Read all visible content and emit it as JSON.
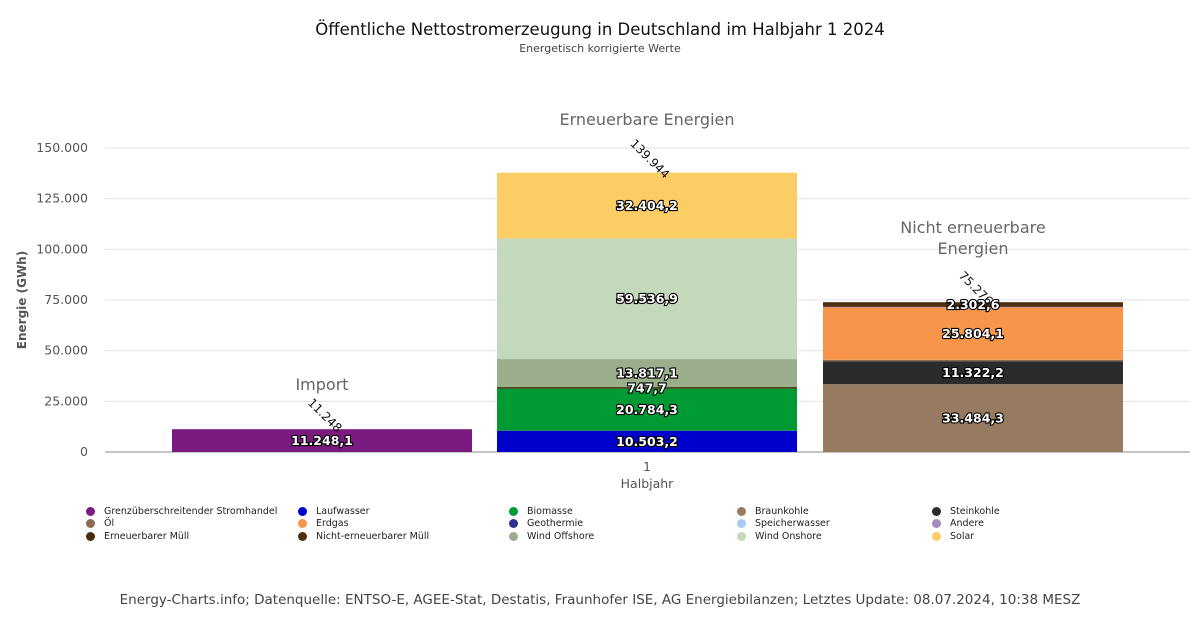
{
  "title": "Öffentliche Nettostromerzeugung in Deutschland im Halbjahr 1 2024",
  "subtitle": "Energetisch korrigierte Werte",
  "footer": "Energy-Charts.info; Datenquelle: ENTSO-E, AGEE-Stat, Destatis, Fraunhofer ISE, AG Energiebilanzen; Letztes Update: 08.07.2024, 10:38 MESZ",
  "chart_data": {
    "type": "bar",
    "stacked": true,
    "ylabel": "Energie (GWh)",
    "xlabel": "Halbjahr",
    "x_tick": "1",
    "ylim": [
      0,
      150000
    ],
    "yticks": [
      0,
      25000,
      50000,
      75000,
      100000,
      125000,
      150000
    ],
    "ytick_labels": [
      "0",
      "25.000",
      "50.000",
      "75.000",
      "100.000",
      "125.000",
      "150.000"
    ],
    "grid": true,
    "legend_position": "bottom",
    "groups": [
      {
        "label": "Import",
        "total_label": "11.248",
        "segments": [
          {
            "name": "Grenzüberschreitender Stromhandel",
            "value": 11248.1,
            "label": "11.248,1",
            "color": "#7b1a80"
          }
        ]
      },
      {
        "label": "Erneuerbare Energien",
        "total_label": "139.944",
        "segments": [
          {
            "name": "Laufwasser",
            "value": 10503.2,
            "label": "10.503,2",
            "color": "#0000cc"
          },
          {
            "name": "Biomasse",
            "value": 20784.3,
            "label": "20.784,3",
            "color": "#009a35"
          },
          {
            "name": "Erneuerbarer Müll",
            "value": 747.7,
            "label": "747,7",
            "color": "#4a2c0a"
          },
          {
            "name": "Wind Offshore",
            "value": 13817.1,
            "label": "13.817,1",
            "color": "#9aae8c"
          },
          {
            "name": "Wind Onshore",
            "value": 59536.9,
            "label": "59.536,9",
            "color": "#c4d9bb"
          },
          {
            "name": "Solar",
            "value": 32404.2,
            "label": "32.404,2",
            "color": "#fdcd65"
          }
        ]
      },
      {
        "label": "Nicht erneuerbare Energien",
        "total_label": "75.276",
        "segments": [
          {
            "name": "Braunkohle",
            "value": 33484.3,
            "label": "33.484,3",
            "color": "#967b60"
          },
          {
            "name": "Steinkohle",
            "value": 11322.2,
            "label": "11.322,2",
            "color": "#2b2b2b"
          },
          {
            "name": "Öl",
            "value": 700,
            "label": "",
            "color": "#8b6a52"
          },
          {
            "name": "Erdgas",
            "value": 25804.1,
            "label": "25.804,1",
            "color": "#f7964a"
          },
          {
            "name": "Andere",
            "value": 300,
            "label": "",
            "color": "#a78bc1"
          },
          {
            "name": "Nicht-erneuerbarer Müll",
            "value": 2302.6,
            "label": "2.302,6",
            "color": "#4d2e0f"
          }
        ]
      }
    ],
    "legend": [
      {
        "name": "Grenzüberschreitender Stromhandel",
        "color": "#7b1a80"
      },
      {
        "name": "Laufwasser",
        "color": "#0000cc"
      },
      {
        "name": "Biomasse",
        "color": "#009a35"
      },
      {
        "name": "Braunkohle",
        "color": "#967b60"
      },
      {
        "name": "Steinkohle",
        "color": "#2b2b2b"
      },
      {
        "name": "Öl",
        "color": "#8b6a52"
      },
      {
        "name": "Erdgas",
        "color": "#f7964a"
      },
      {
        "name": "Geothermie",
        "color": "#2e3192"
      },
      {
        "name": "Speicherwasser",
        "color": "#aac8f5"
      },
      {
        "name": "Andere",
        "color": "#a78bc1"
      },
      {
        "name": "Erneuerbarer Müll",
        "color": "#4a2c0a"
      },
      {
        "name": "Nicht-erneuerbarer Müll",
        "color": "#4d2e0f"
      },
      {
        "name": "Wind Offshore",
        "color": "#9aae8c"
      },
      {
        "name": "Wind Onshore",
        "color": "#c4d9bb"
      },
      {
        "name": "Solar",
        "color": "#fdcd65"
      }
    ]
  }
}
